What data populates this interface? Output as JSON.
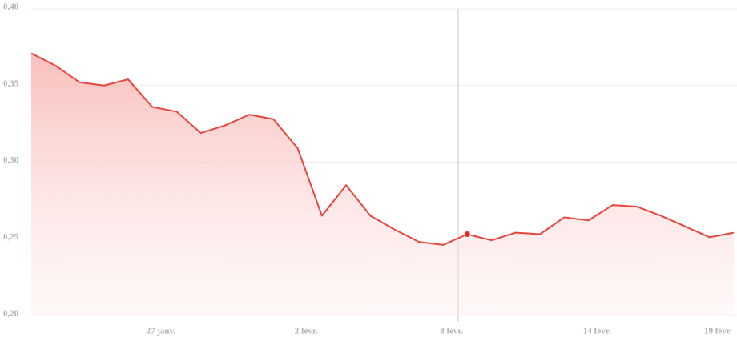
{
  "chart_data": {
    "type": "area",
    "categories": [
      null,
      null,
      null,
      null,
      null,
      "27 janv.",
      null,
      null,
      null,
      null,
      null,
      "2 févr.",
      null,
      null,
      null,
      null,
      null,
      "8 févr.",
      null,
      null,
      null,
      null,
      null,
      "14 févr.",
      null,
      null,
      null,
      null,
      "19 févr.",
      null
    ],
    "values": [
      0.371,
      0.363,
      0.352,
      0.35,
      0.354,
      0.336,
      0.333,
      0.319,
      0.324,
      0.331,
      0.328,
      0.309,
      0.265,
      0.285,
      0.265,
      0.256,
      0.248,
      0.246,
      0.253,
      0.249,
      0.254,
      0.253,
      0.264,
      0.262,
      0.272,
      0.271,
      0.265,
      0.258,
      0.251,
      0.254
    ],
    "color": "#e8453c",
    "ylim": [
      0.2,
      0.4
    ],
    "yticks": [
      {
        "value": 0.2,
        "label": "0,20"
      },
      {
        "value": 0.25,
        "label": "0,25"
      },
      {
        "value": 0.3,
        "label": "0,30"
      },
      {
        "value": 0.35,
        "label": "0,35"
      },
      {
        "value": 0.4,
        "label": "0,40"
      }
    ],
    "grid": true,
    "highlight_index": 18
  }
}
